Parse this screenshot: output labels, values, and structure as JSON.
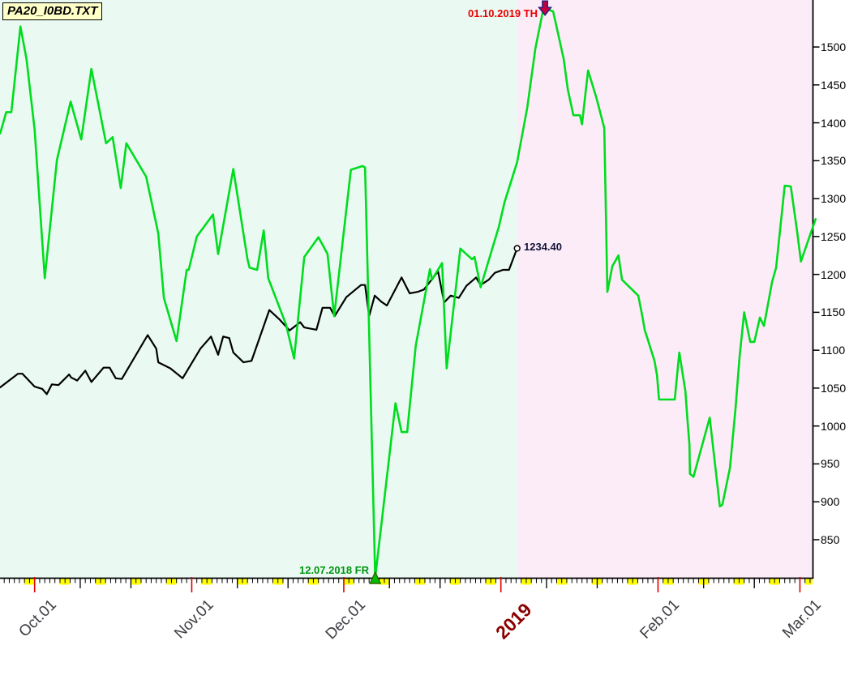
{
  "title": {
    "filename": "PA20_I0BD.TXT"
  },
  "colors": {
    "background_left": "#EAFAF3",
    "background_right": "#FCECF7",
    "weekend_block": "#FFFF00",
    "month_tick": "#E00000",
    "green_line": "#00DC1E",
    "black_line": "#000000",
    "year_label": "#8B0000",
    "month_label": "#3F3F46",
    "peak_text": "#E80000",
    "trough_text": "#009410",
    "value_text": "#14143C",
    "title_bg": "#FFFFC8"
  },
  "annotations": {
    "peak_marker": {
      "label": "01.10.2019 TH",
      "day": 100.7,
      "price": 1542,
      "marker": "down-arrow"
    },
    "trough_marker": {
      "label": "12.07.2018 FR",
      "day": 67.2,
      "price": 800,
      "marker": "up-triangle"
    },
    "last_value_marker": {
      "label": "1234.40",
      "day": 95.2,
      "price": 1234.4,
      "marker": "circle"
    }
  },
  "chart_data": {
    "type": "line",
    "title": "",
    "ylabel": "",
    "xlabel": "",
    "ylim_labeled": [
      850,
      1500
    ],
    "ylim_drawn": [
      800,
      1555
    ],
    "grid": false,
    "legend": "none",
    "y_ticks": [
      1500,
      1450,
      1400,
      1350,
      1300,
      1250,
      1200,
      1150,
      1100,
      1050,
      1000,
      950,
      900,
      850
    ],
    "x_axis": {
      "unit": "calendar days from Oct 01 2018",
      "month_ticks": [
        {
          "label": "Oct.01",
          "day": 0
        },
        {
          "label": "Nov.01",
          "day": 31
        },
        {
          "label": "Dec.01",
          "day": 61
        },
        {
          "label": "2019",
          "day": 92,
          "is_year": true
        },
        {
          "label": "Feb.01",
          "day": 123
        },
        {
          "label": "Mar.01",
          "day": 151
        }
      ],
      "ten_day_tick_days": [
        9,
        19,
        40,
        50,
        70,
        80,
        101,
        111,
        132,
        142
      ],
      "weekend_shading": {
        "first_start_day": -2,
        "period_days": 7,
        "width_days": 2,
        "last_start_day": 152
      },
      "day_tick_range": [
        -6,
        153
      ]
    },
    "region_split_day": 95.2,
    "series": [
      {
        "id": "green",
        "color": "#00DC1E",
        "width": 2.6,
        "points": [
          [
            -6.8,
            1386
          ],
          [
            -5.6,
            1414
          ],
          [
            -4.6,
            1414
          ],
          [
            -2.8,
            1527
          ],
          [
            -1.6,
            1484
          ],
          [
            0,
            1391
          ],
          [
            2,
            1195
          ],
          [
            4.4,
            1351
          ],
          [
            7.1,
            1428
          ],
          [
            9.2,
            1378
          ],
          [
            11.2,
            1471
          ],
          [
            14.1,
            1373
          ],
          [
            15.4,
            1381
          ],
          [
            17,
            1314
          ],
          [
            18.1,
            1373
          ],
          [
            22,
            1329
          ],
          [
            23.6,
            1279
          ],
          [
            24.4,
            1254
          ],
          [
            25.5,
            1169
          ],
          [
            28,
            1112
          ],
          [
            30,
            1206
          ],
          [
            30.4,
            1206
          ],
          [
            32,
            1250
          ],
          [
            35.2,
            1279
          ],
          [
            36.2,
            1227
          ],
          [
            39.2,
            1339
          ],
          [
            42,
            1220
          ],
          [
            42.4,
            1209
          ],
          [
            43.9,
            1206
          ],
          [
            45.2,
            1258
          ],
          [
            46.1,
            1195
          ],
          [
            49.6,
            1134
          ],
          [
            51.2,
            1089
          ],
          [
            53.2,
            1223
          ],
          [
            56,
            1249
          ],
          [
            57.8,
            1227
          ],
          [
            59.1,
            1145
          ],
          [
            62.4,
            1338
          ],
          [
            64.7,
            1343
          ],
          [
            65.2,
            1341
          ],
          [
            67.2,
            800
          ],
          [
            71.2,
            1030
          ],
          [
            72.4,
            992
          ],
          [
            73.5,
            992
          ],
          [
            75.2,
            1106
          ],
          [
            78,
            1207
          ],
          [
            78.4,
            1193
          ],
          [
            80.4,
            1215
          ],
          [
            81.3,
            1076
          ],
          [
            84,
            1234
          ],
          [
            86.3,
            1220
          ],
          [
            86.8,
            1223
          ],
          [
            88,
            1183
          ],
          [
            91.6,
            1263
          ],
          [
            92.7,
            1295
          ],
          [
            95.2,
            1348
          ],
          [
            97.2,
            1420
          ],
          [
            98.8,
            1498
          ],
          [
            100.4,
            1551
          ],
          [
            102.3,
            1547
          ],
          [
            104.4,
            1484
          ],
          [
            105.2,
            1444
          ],
          [
            106.3,
            1410
          ],
          [
            107.6,
            1410
          ],
          [
            108,
            1398
          ],
          [
            109.2,
            1469
          ],
          [
            110.8,
            1434
          ],
          [
            112.4,
            1393
          ],
          [
            113,
            1177
          ],
          [
            114,
            1211
          ],
          [
            115.2,
            1225
          ],
          [
            115.9,
            1193
          ],
          [
            119.1,
            1172
          ],
          [
            119.9,
            1145
          ],
          [
            120.4,
            1126
          ],
          [
            120.8,
            1118
          ],
          [
            122.3,
            1086
          ],
          [
            122.8,
            1067
          ],
          [
            123.2,
            1035
          ],
          [
            126.3,
            1035
          ],
          [
            127.2,
            1097
          ],
          [
            128.4,
            1046
          ],
          [
            128.8,
            1009
          ],
          [
            129.2,
            976
          ],
          [
            129.3,
            937
          ],
          [
            130,
            933
          ],
          [
            133.2,
            1011
          ],
          [
            135.2,
            894
          ],
          [
            135.7,
            896
          ],
          [
            137.2,
            945
          ],
          [
            138.3,
            1024
          ],
          [
            139.1,
            1092
          ],
          [
            140,
            1150
          ],
          [
            141.2,
            1111
          ],
          [
            142,
            1111
          ],
          [
            143.1,
            1143
          ],
          [
            143.9,
            1132
          ],
          [
            145.5,
            1190
          ],
          [
            146.3,
            1209
          ],
          [
            148,
            1317
          ],
          [
            149.2,
            1316
          ],
          [
            150.4,
            1259
          ],
          [
            151.2,
            1217
          ],
          [
            154.1,
            1273
          ]
        ]
      },
      {
        "id": "black",
        "color": "#000000",
        "width": 2.2,
        "end_label": "1234.40",
        "points": [
          [
            -6.8,
            1051
          ],
          [
            -3.3,
            1069
          ],
          [
            -2.4,
            1069
          ],
          [
            0,
            1052
          ],
          [
            1.5,
            1049
          ],
          [
            2.4,
            1042
          ],
          [
            3.4,
            1055
          ],
          [
            4.7,
            1054
          ],
          [
            6.8,
            1068
          ],
          [
            7.2,
            1064
          ],
          [
            8.4,
            1060
          ],
          [
            10,
            1073
          ],
          [
            11.2,
            1058
          ],
          [
            13.6,
            1077
          ],
          [
            14.8,
            1077
          ],
          [
            16,
            1063
          ],
          [
            17.2,
            1062
          ],
          [
            22.3,
            1120
          ],
          [
            24,
            1102
          ],
          [
            24.4,
            1084
          ],
          [
            26.8,
            1076
          ],
          [
            29.2,
            1063
          ],
          [
            32.7,
            1102
          ],
          [
            34.8,
            1118
          ],
          [
            36.2,
            1094
          ],
          [
            37.2,
            1118
          ],
          [
            38.4,
            1116
          ],
          [
            39.2,
            1097
          ],
          [
            41.2,
            1084
          ],
          [
            42.8,
            1086
          ],
          [
            46.3,
            1153
          ],
          [
            48.4,
            1140
          ],
          [
            50.3,
            1126
          ],
          [
            52.4,
            1137
          ],
          [
            53.2,
            1130
          ],
          [
            55.6,
            1127
          ],
          [
            56.8,
            1156
          ],
          [
            58.3,
            1156
          ],
          [
            59.2,
            1145
          ],
          [
            61.5,
            1170
          ],
          [
            64.4,
            1186
          ],
          [
            65.2,
            1186
          ],
          [
            66,
            1145
          ],
          [
            67.1,
            1172
          ],
          [
            68.4,
            1164
          ],
          [
            69.5,
            1159
          ],
          [
            72.4,
            1196
          ],
          [
            74,
            1175
          ],
          [
            75.6,
            1177
          ],
          [
            76.8,
            1180
          ],
          [
            79.6,
            1204
          ],
          [
            80.8,
            1163
          ],
          [
            82.1,
            1172
          ],
          [
            83.7,
            1169
          ],
          [
            85.2,
            1185
          ],
          [
            87.1,
            1196
          ],
          [
            88,
            1186
          ],
          [
            89.6,
            1193
          ],
          [
            90.8,
            1202
          ],
          [
            92.4,
            1206
          ],
          [
            93.6,
            1206
          ],
          [
            95.2,
            1234.4
          ]
        ]
      }
    ]
  }
}
